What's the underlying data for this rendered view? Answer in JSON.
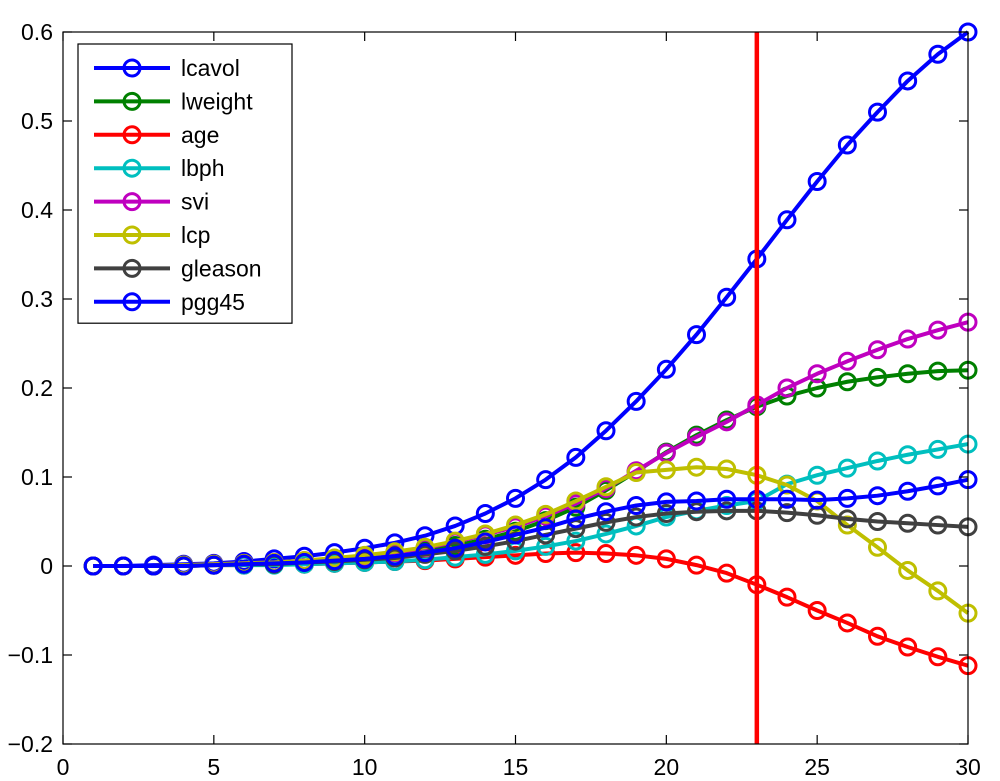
{
  "chart_data": {
    "type": "line",
    "title": "",
    "xlabel": "",
    "ylabel": "",
    "xlim": [
      0,
      30
    ],
    "ylim": [
      -0.2,
      0.6
    ],
    "xticks": [
      0,
      5,
      10,
      15,
      20,
      25,
      30
    ],
    "xtick_labels": [
      "0",
      "5",
      "10",
      "15",
      "20",
      "25",
      "30"
    ],
    "yticks": [
      -0.2,
      -0.1,
      0,
      0.1,
      0.2,
      0.3,
      0.4,
      0.5,
      0.6
    ],
    "ytick_labels": [
      "−0.2",
      "−0.1",
      "0",
      "0.1",
      "0.2",
      "0.3",
      "0.4",
      "0.5",
      "0.6"
    ],
    "grid": false,
    "legend_position": "top-left",
    "x": [
      1,
      2,
      3,
      4,
      5,
      6,
      7,
      8,
      9,
      10,
      11,
      12,
      13,
      14,
      15,
      16,
      17,
      18,
      19,
      20,
      21,
      22,
      23,
      24,
      25,
      26,
      27,
      28,
      29,
      30
    ],
    "vertical_line": {
      "x": 23,
      "color": "#ff0000"
    },
    "series": [
      {
        "name": "lcavol",
        "color": "#0000ff",
        "values": [
          0,
          0,
          0.001,
          0.002,
          0.003,
          0.005,
          0.008,
          0.011,
          0.015,
          0.02,
          0.026,
          0.034,
          0.045,
          0.059,
          0.076,
          0.097,
          0.122,
          0.152,
          0.185,
          0.221,
          0.26,
          0.302,
          0.345,
          0.389,
          0.432,
          0.473,
          0.51,
          0.545,
          0.575,
          0.6
        ]
      },
      {
        "name": "lweight",
        "color": "#008000",
        "values": [
          0,
          0,
          0,
          0.001,
          0.001,
          0.002,
          0.003,
          0.004,
          0.006,
          0.009,
          0.012,
          0.017,
          0.023,
          0.03,
          0.039,
          0.051,
          0.066,
          0.085,
          0.106,
          0.128,
          0.147,
          0.164,
          0.179,
          0.191,
          0.2,
          0.207,
          0.212,
          0.216,
          0.219,
          0.22
        ]
      },
      {
        "name": "age",
        "color": "#ff0000",
        "values": [
          0,
          0,
          0,
          0,
          0.001,
          0.001,
          0.002,
          0.002,
          0.003,
          0.004,
          0.005,
          0.006,
          0.008,
          0.01,
          0.012,
          0.014,
          0.015,
          0.014,
          0.012,
          0.008,
          0.001,
          -0.008,
          -0.021,
          -0.035,
          -0.05,
          -0.064,
          -0.079,
          -0.091,
          -0.102,
          -0.112
        ]
      },
      {
        "name": "lbph",
        "color": "#00bfbf",
        "values": [
          0,
          0,
          0,
          0,
          0.001,
          0.001,
          0.001,
          0.002,
          0.003,
          0.004,
          0.005,
          0.007,
          0.01,
          0.013,
          0.017,
          0.022,
          0.028,
          0.036,
          0.045,
          0.055,
          0.062,
          0.068,
          0.073,
          0.092,
          0.102,
          0.11,
          0.118,
          0.125,
          0.131,
          0.137
        ]
      },
      {
        "name": "svi",
        "color": "#bf00bf",
        "values": [
          0,
          0,
          0,
          0.001,
          0.002,
          0.003,
          0.004,
          0.006,
          0.008,
          0.011,
          0.015,
          0.02,
          0.027,
          0.035,
          0.044,
          0.056,
          0.07,
          0.087,
          0.107,
          0.127,
          0.145,
          0.162,
          0.181,
          0.2,
          0.216,
          0.23,
          0.243,
          0.255,
          0.265,
          0.274
        ]
      },
      {
        "name": "lcp",
        "color": "#bfbf00",
        "values": [
          0,
          0,
          0,
          0.001,
          0.002,
          0.003,
          0.004,
          0.006,
          0.009,
          0.012,
          0.016,
          0.021,
          0.028,
          0.036,
          0.046,
          0.058,
          0.073,
          0.089,
          0.105,
          0.108,
          0.111,
          0.109,
          0.102,
          0.091,
          0.073,
          0.046,
          0.021,
          -0.005,
          -0.028,
          -0.053
        ]
      },
      {
        "name": "gleason",
        "color": "#404040",
        "values": [
          0,
          0,
          0,
          0,
          0.001,
          0.002,
          0.002,
          0.004,
          0.005,
          0.007,
          0.009,
          0.013,
          0.017,
          0.022,
          0.028,
          0.035,
          0.042,
          0.049,
          0.055,
          0.059,
          0.061,
          0.062,
          0.062,
          0.06,
          0.057,
          0.053,
          0.05,
          0.048,
          0.046,
          0.044
        ]
      },
      {
        "name": "pgg45",
        "color": "#0000ff",
        "values": [
          0,
          0,
          0,
          0,
          0.001,
          0.002,
          0.003,
          0.004,
          0.006,
          0.008,
          0.011,
          0.015,
          0.02,
          0.027,
          0.035,
          0.043,
          0.053,
          0.061,
          0.068,
          0.072,
          0.073,
          0.075,
          0.075,
          0.075,
          0.074,
          0.076,
          0.079,
          0.084,
          0.09,
          0.097
        ]
      }
    ]
  }
}
